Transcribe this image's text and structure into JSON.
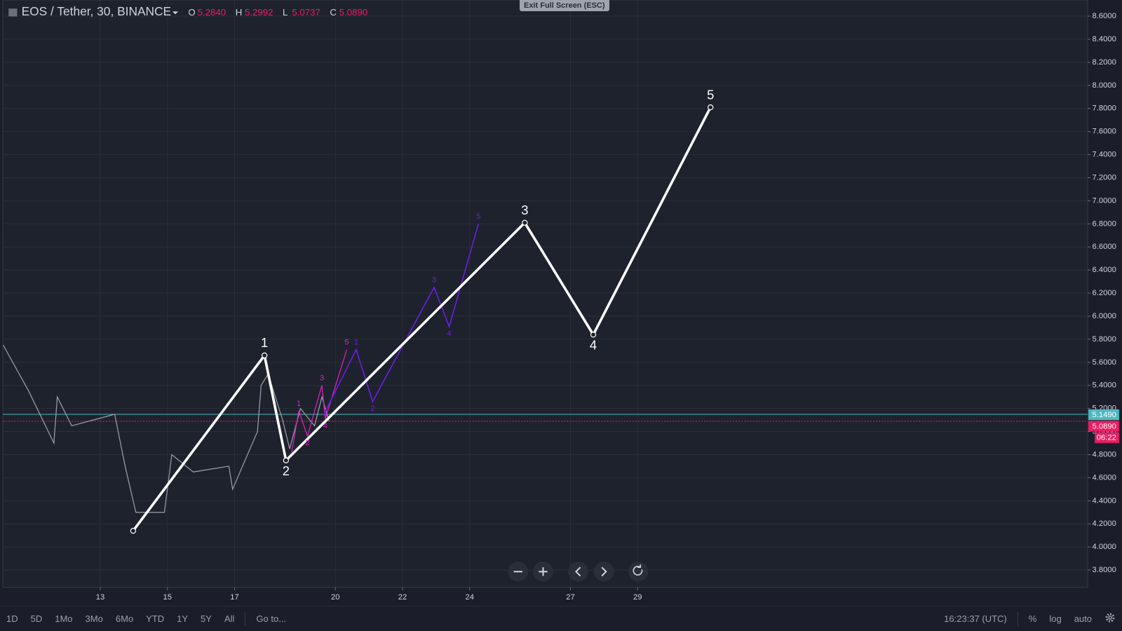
{
  "header": {
    "symbol": "EOS / Tether, 30, BINANCE",
    "ohlc": [
      {
        "key": "O",
        "value": "5.2840"
      },
      {
        "key": "H",
        "value": "5.2992"
      },
      {
        "key": "L",
        "value": "5.0737"
      },
      {
        "key": "C",
        "value": "5.0890"
      }
    ]
  },
  "exit_button": "Exit Full Screen (ESC)",
  "chart_data": {
    "type": "line",
    "xlim": [
      10.1,
      42.4
    ],
    "ylim": [
      3.65,
      8.74
    ],
    "xticks": [
      13,
      15,
      17,
      20,
      22,
      24,
      27,
      29
    ],
    "yticks": [
      {
        "value": 3.8,
        "label": "3.8000"
      },
      {
        "value": 4.0,
        "label": "4.0000"
      },
      {
        "value": 4.2,
        "label": "4.2000"
      },
      {
        "value": 4.4,
        "label": "4.4000"
      },
      {
        "value": 4.6,
        "label": "4.6000"
      },
      {
        "value": 4.8,
        "label": "4.8000"
      },
      {
        "value": 5.0,
        "label": "5.0000"
      },
      {
        "value": 5.2,
        "label": "5.2000"
      },
      {
        "value": 5.4,
        "label": "5.4000"
      },
      {
        "value": 5.6,
        "label": "5.6000"
      },
      {
        "value": 5.8,
        "label": "5.8000"
      },
      {
        "value": 6.0,
        "label": "6.0000"
      },
      {
        "value": 6.2,
        "label": "6.2000"
      },
      {
        "value": 6.4,
        "label": "6.4000"
      },
      {
        "value": 6.6,
        "label": "6.6000"
      },
      {
        "value": 6.8,
        "label": "6.8000"
      },
      {
        "value": 7.0,
        "label": "7.0000"
      },
      {
        "value": 7.2,
        "label": "7.2000"
      },
      {
        "value": 7.4,
        "label": "7.4000"
      },
      {
        "value": 7.6,
        "label": "7.6000"
      },
      {
        "value": 7.8,
        "label": "7.8000"
      },
      {
        "value": 8.0,
        "label": "8.0000"
      },
      {
        "value": 8.2,
        "label": "8.2000"
      },
      {
        "value": 8.4,
        "label": "8.4000"
      },
      {
        "value": 8.6,
        "label": "8.6000"
      }
    ],
    "grid": true,
    "series": [
      {
        "color": "#9aa0aa",
        "width": 1.2,
        "x": [
          10.11,
          10.87,
          11.62,
          11.72,
          12.15,
          13.43,
          13.74,
          14.06,
          14.91,
          15.13,
          15.77,
          16.83,
          16.94,
          17.68,
          17.79,
          18.0,
          18.43,
          18.64,
          18.96,
          19.38,
          19.6,
          19.81
        ],
        "values": [
          5.75,
          5.35,
          4.9,
          5.3,
          5.05,
          5.15,
          4.7,
          4.3,
          4.3,
          4.8,
          4.65,
          4.7,
          4.5,
          5.0,
          5.4,
          5.5,
          5.1,
          4.85,
          5.2,
          5.05,
          5.3,
          5.09
        ]
      },
      {
        "color": "#e020c0",
        "width": 1.2,
        "label_size": 11,
        "x": [
          18.7,
          18.91,
          19.17,
          19.6,
          19.7,
          20.34
        ],
        "values": [
          4.82,
          5.18,
          4.96,
          5.4,
          5.11,
          5.71
        ],
        "point_labels": [
          null,
          "1",
          "2",
          "3",
          "4",
          "5"
        ]
      },
      {
        "color": "#6a1fe0",
        "width": 1.6,
        "label_size": 11,
        "x": [
          19.64,
          20.62,
          21.11,
          22.94,
          23.39,
          24.26
        ],
        "values": [
          5.14,
          5.71,
          5.26,
          6.25,
          5.91,
          6.8
        ],
        "point_labels": [
          null,
          "1",
          "2",
          "3",
          "4",
          "5"
        ]
      },
      {
        "color": "#ffffff",
        "width": 3.5,
        "label_size": 18,
        "markers": true,
        "x": [
          13.98,
          17.89,
          18.53,
          25.64,
          27.68,
          31.17
        ],
        "values": [
          4.14,
          5.66,
          4.75,
          6.81,
          5.84,
          7.81
        ],
        "point_labels": [
          null,
          "1",
          "2",
          "3",
          "4",
          "5"
        ]
      }
    ],
    "price_lines": [
      {
        "value": 5.149,
        "label": "5.1490",
        "color": "#4fb8c0"
      },
      {
        "value": 5.089,
        "label": "5.0890",
        "color": "#e91e63"
      }
    ],
    "countdown": "06:22"
  },
  "toolbar": {
    "ranges": [
      "1D",
      "5D",
      "1Mo",
      "3Mo",
      "6Mo",
      "YTD",
      "1Y",
      "5Y",
      "All"
    ],
    "goto": "Go to...",
    "time": "16:23:37 (UTC)",
    "options": [
      "%",
      "log",
      "auto"
    ]
  }
}
